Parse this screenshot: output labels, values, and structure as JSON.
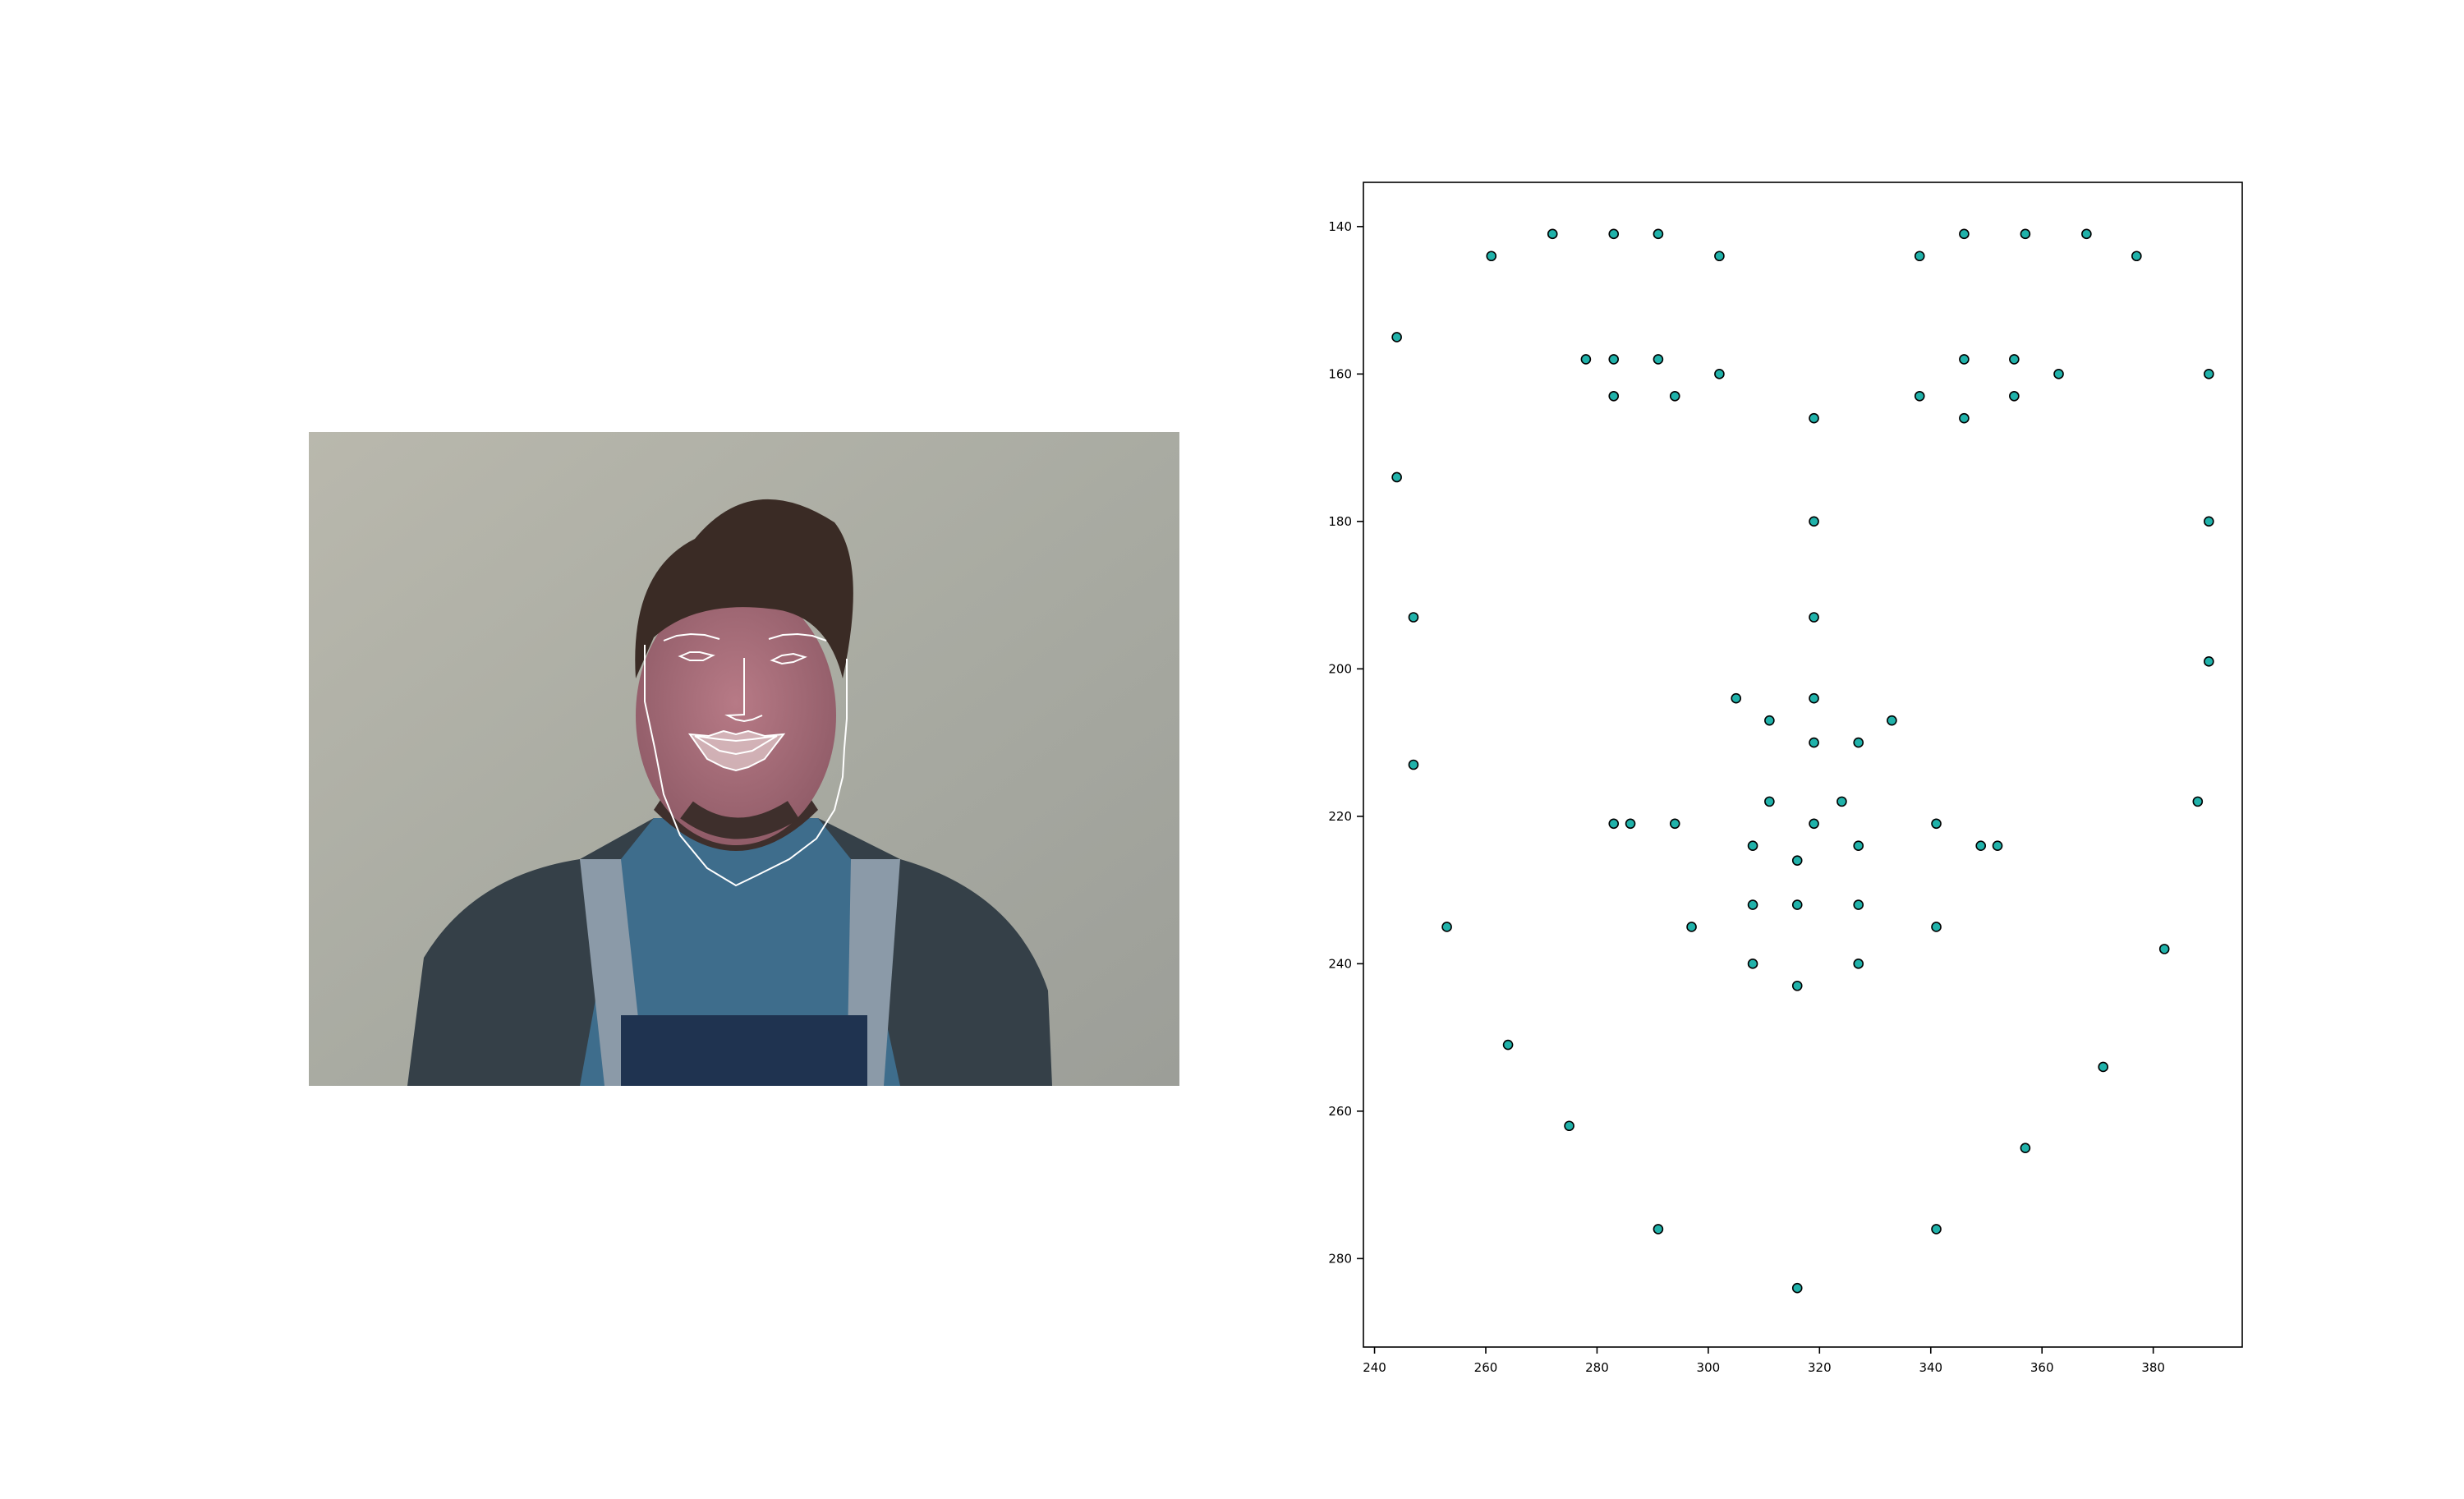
{
  "figure": {
    "photo": {
      "description_icon": "face-photo-with-landmarks",
      "landmark_color": "#ffffff"
    }
  },
  "chart_data": {
    "type": "scatter",
    "title": "",
    "xlabel": "",
    "ylabel": "",
    "xlim": [
      238,
      396
    ],
    "ylim": [
      292,
      134
    ],
    "y_inverted": true,
    "grid": false,
    "xticks": [
      240,
      260,
      280,
      300,
      320,
      340,
      360,
      380
    ],
    "yticks": [
      140,
      160,
      180,
      200,
      220,
      240,
      260,
      280
    ],
    "marker_face_color": "#20b2aa",
    "marker_edge_color": "#000000",
    "series": [
      {
        "x": [
          244,
          244,
          247,
          247,
          253,
          264,
          275,
          291,
          316,
          341,
          357,
          371,
          382,
          388,
          390,
          390,
          390,
          261,
          272,
          283,
          291,
          302,
          338,
          346,
          357,
          368,
          377,
          319,
          319,
          319,
          319,
          305,
          311,
          319,
          327,
          333,
          278,
          283,
          291,
          302,
          294,
          283,
          338,
          346,
          355,
          363,
          355,
          346,
          283,
          294,
          311,
          319,
          324,
          341,
          352,
          341,
          327,
          316,
          308,
          286,
          308,
          316,
          327,
          349,
          327,
          316,
          308,
          297
        ],
        "y": [
          155,
          174,
          193,
          213,
          235,
          251,
          262,
          276,
          284,
          276,
          265,
          254,
          238,
          218,
          199,
          180,
          160,
          144,
          141,
          141,
          141,
          144,
          144,
          141,
          141,
          141,
          144,
          166,
          180,
          193,
          204,
          204,
          207,
          210,
          210,
          207,
          158,
          158,
          158,
          160,
          163,
          163,
          163,
          158,
          158,
          160,
          163,
          166,
          221,
          221,
          218,
          221,
          218,
          221,
          224,
          235,
          240,
          243,
          240,
          221,
          224,
          226,
          224,
          224,
          232,
          232,
          232,
          235
        ]
      }
    ]
  }
}
